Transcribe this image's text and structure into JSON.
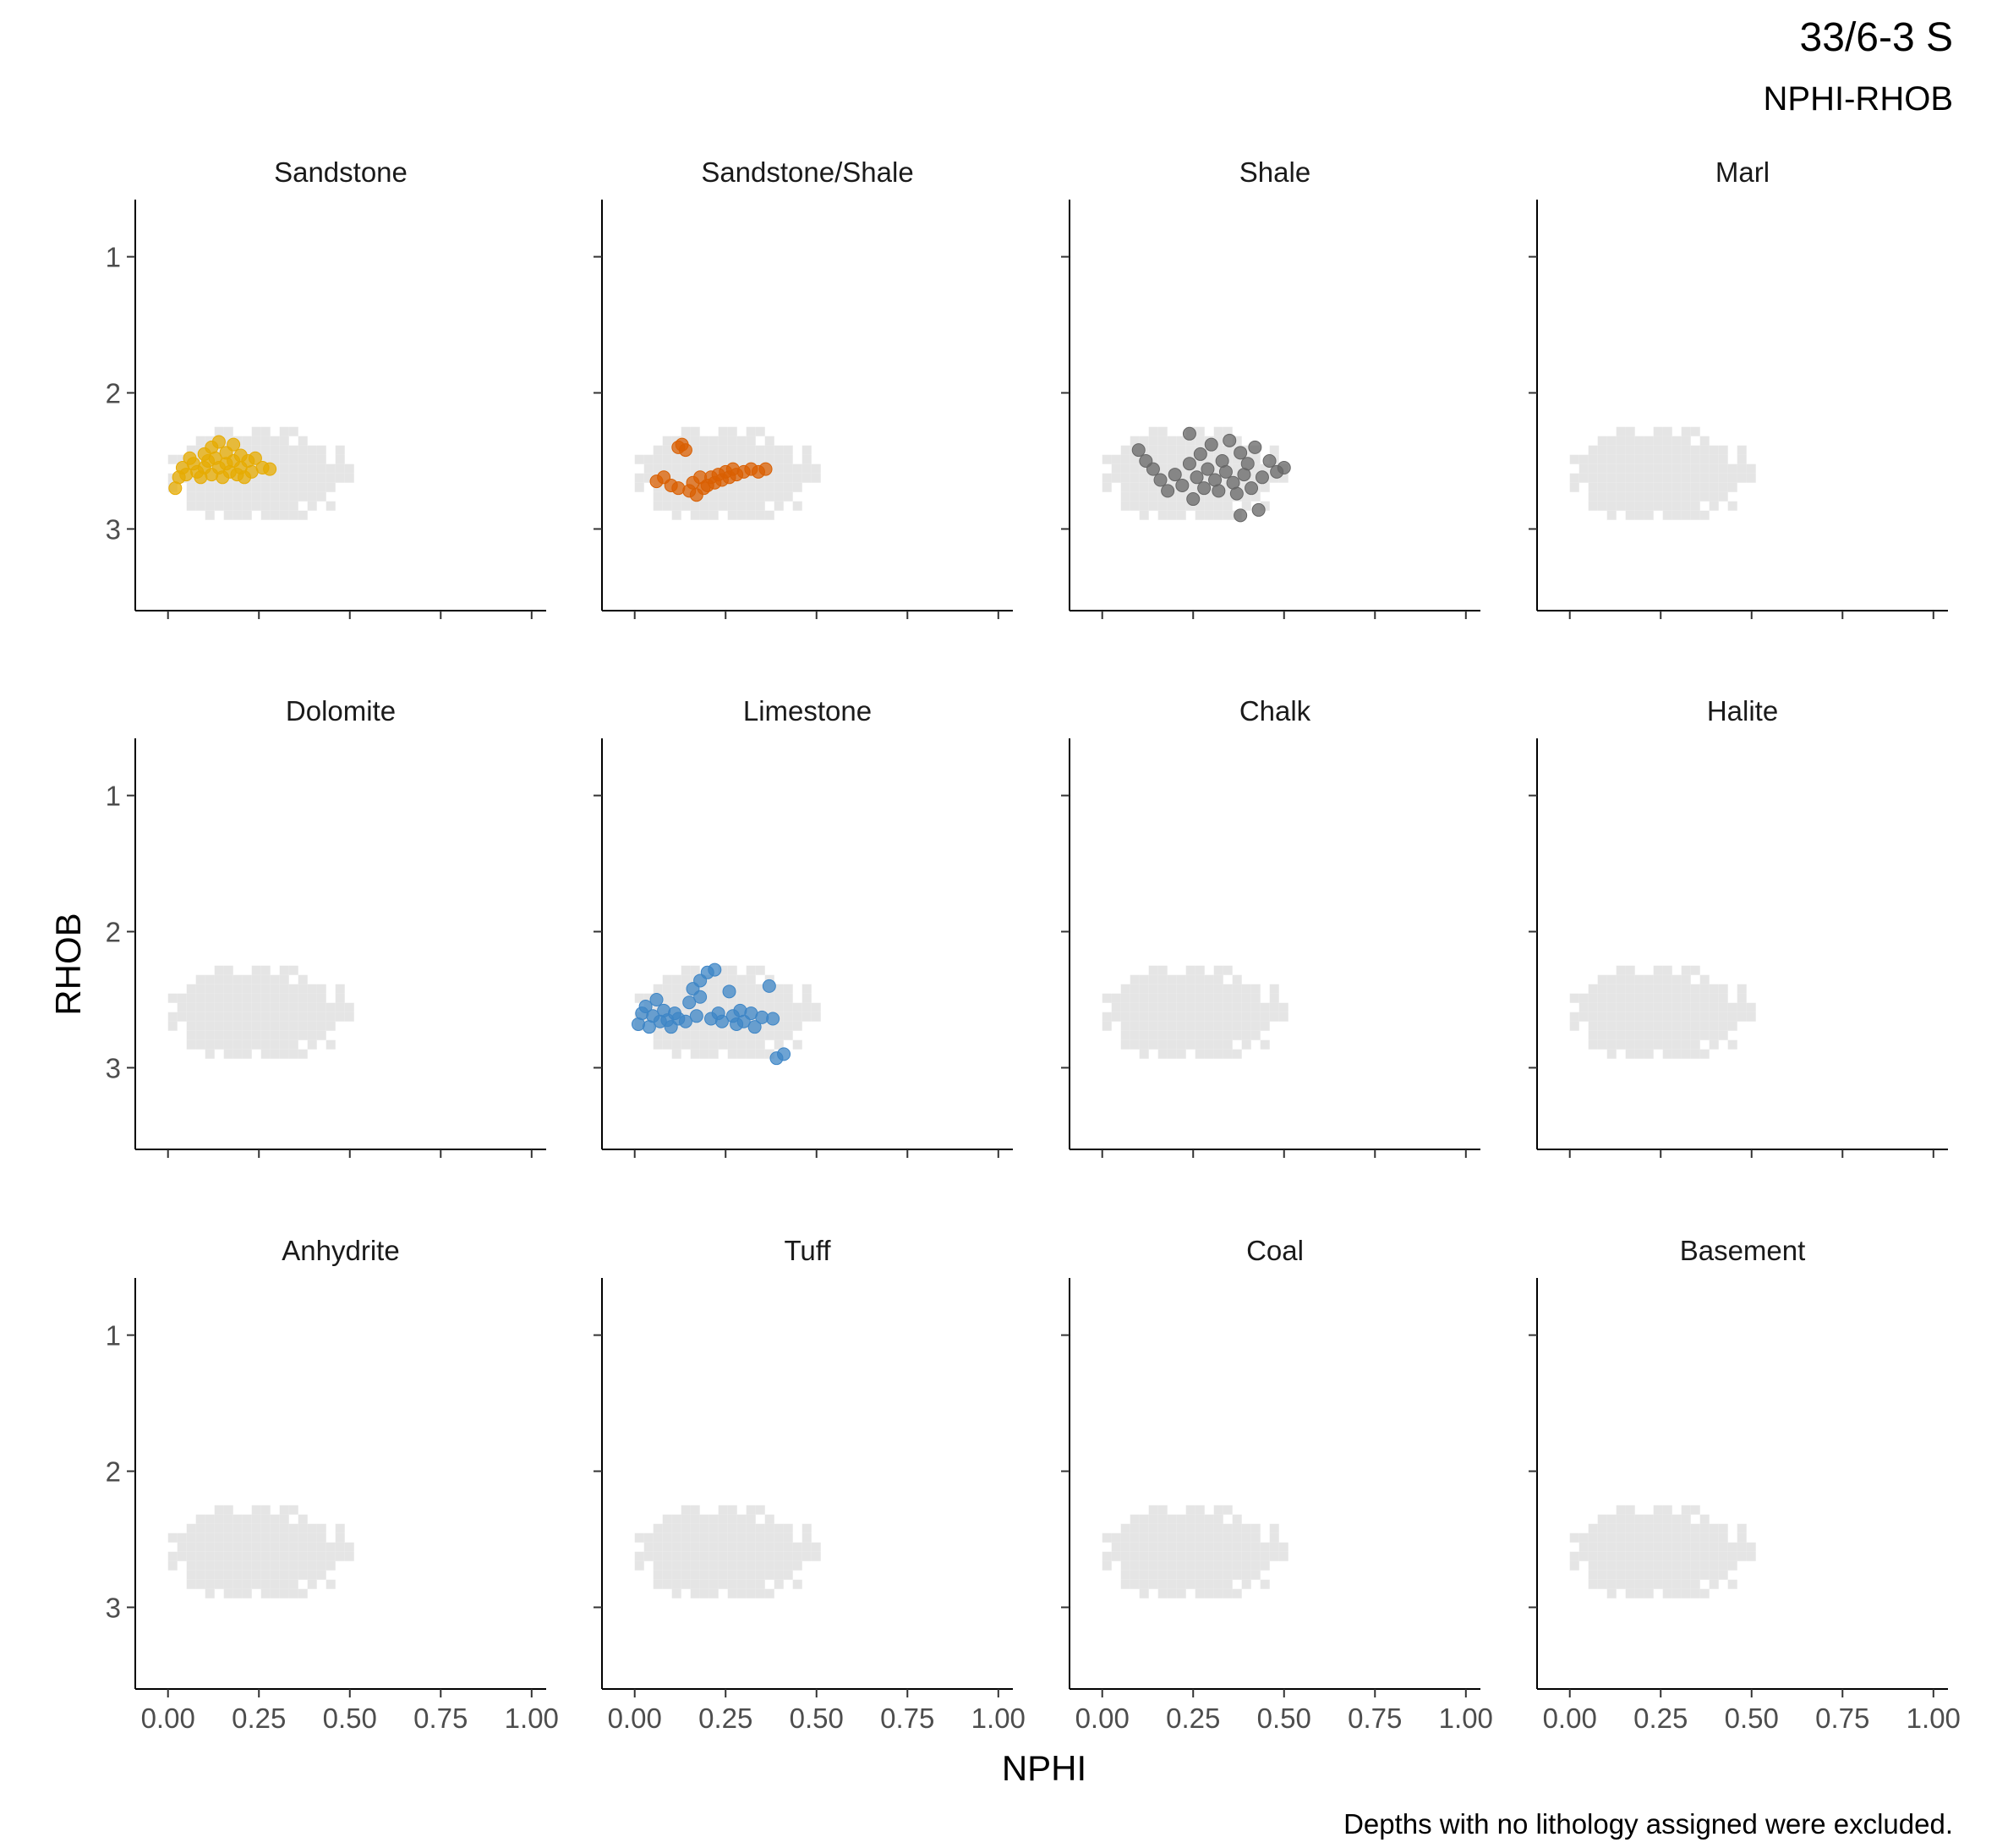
{
  "title": "33/6-3 S",
  "subtitle": "NPHI-RHOB",
  "caption": "Depths with no lithology assigned were excluded.",
  "chart_data": {
    "type": "scatter",
    "xlabel": "NPHI",
    "ylabel": "RHOB",
    "xlim": [
      -0.09,
      1.04
    ],
    "ylim": [
      0.58,
      3.6
    ],
    "y_reversed": true,
    "x_ticks": [
      "0.00",
      "0.25",
      "0.50",
      "0.75",
      "1.00"
    ],
    "y_ticks": [
      "1",
      "2",
      "3"
    ],
    "grid": false,
    "background": {
      "color": "#e5e5e5",
      "description_of_region": "all-lithology point cloud shown in every panel",
      "x_range": [
        0.0,
        0.52
      ],
      "y_range": [
        2.25,
        2.9
      ]
    },
    "panels": [
      {
        "name": "Sandstone",
        "color": "#e6ab02",
        "points": [
          [
            0.02,
            2.7
          ],
          [
            0.03,
            2.62
          ],
          [
            0.04,
            2.55
          ],
          [
            0.05,
            2.6
          ],
          [
            0.06,
            2.48
          ],
          [
            0.07,
            2.52
          ],
          [
            0.08,
            2.58
          ],
          [
            0.09,
            2.62
          ],
          [
            0.1,
            2.45
          ],
          [
            0.1,
            2.55
          ],
          [
            0.11,
            2.5
          ],
          [
            0.12,
            2.6
          ],
          [
            0.12,
            2.4
          ],
          [
            0.13,
            2.48
          ],
          [
            0.14,
            2.36
          ],
          [
            0.14,
            2.55
          ],
          [
            0.15,
            2.62
          ],
          [
            0.16,
            2.44
          ],
          [
            0.16,
            2.52
          ],
          [
            0.17,
            2.58
          ],
          [
            0.18,
            2.38
          ],
          [
            0.18,
            2.5
          ],
          [
            0.19,
            2.6
          ],
          [
            0.2,
            2.46
          ],
          [
            0.2,
            2.55
          ],
          [
            0.21,
            2.62
          ],
          [
            0.22,
            2.5
          ],
          [
            0.23,
            2.58
          ],
          [
            0.24,
            2.48
          ],
          [
            0.26,
            2.55
          ],
          [
            0.28,
            2.56
          ]
        ]
      },
      {
        "name": "Sandstone/Shale",
        "color": "#d95f02",
        "points": [
          [
            0.06,
            2.65
          ],
          [
            0.08,
            2.62
          ],
          [
            0.1,
            2.68
          ],
          [
            0.12,
            2.7
          ],
          [
            0.12,
            2.4
          ],
          [
            0.13,
            2.38
          ],
          [
            0.14,
            2.42
          ],
          [
            0.15,
            2.72
          ],
          [
            0.16,
            2.66
          ],
          [
            0.17,
            2.75
          ],
          [
            0.18,
            2.62
          ],
          [
            0.19,
            2.7
          ],
          [
            0.2,
            2.68
          ],
          [
            0.21,
            2.62
          ],
          [
            0.22,
            2.66
          ],
          [
            0.23,
            2.6
          ],
          [
            0.24,
            2.64
          ],
          [
            0.25,
            2.58
          ],
          [
            0.26,
            2.62
          ],
          [
            0.27,
            2.56
          ],
          [
            0.28,
            2.6
          ],
          [
            0.3,
            2.58
          ],
          [
            0.32,
            2.56
          ],
          [
            0.34,
            2.58
          ],
          [
            0.36,
            2.56
          ]
        ]
      },
      {
        "name": "Shale",
        "color": "#666666",
        "points": [
          [
            0.1,
            2.42
          ],
          [
            0.12,
            2.5
          ],
          [
            0.14,
            2.56
          ],
          [
            0.16,
            2.64
          ],
          [
            0.18,
            2.72
          ],
          [
            0.2,
            2.6
          ],
          [
            0.22,
            2.68
          ],
          [
            0.24,
            2.3
          ],
          [
            0.24,
            2.52
          ],
          [
            0.25,
            2.78
          ],
          [
            0.26,
            2.62
          ],
          [
            0.27,
            2.45
          ],
          [
            0.28,
            2.7
          ],
          [
            0.29,
            2.56
          ],
          [
            0.3,
            2.38
          ],
          [
            0.31,
            2.64
          ],
          [
            0.32,
            2.72
          ],
          [
            0.33,
            2.5
          ],
          [
            0.34,
            2.58
          ],
          [
            0.35,
            2.35
          ],
          [
            0.36,
            2.66
          ],
          [
            0.37,
            2.74
          ],
          [
            0.38,
            2.44
          ],
          [
            0.38,
            2.9
          ],
          [
            0.39,
            2.6
          ],
          [
            0.4,
            2.52
          ],
          [
            0.41,
            2.7
          ],
          [
            0.42,
            2.4
          ],
          [
            0.43,
            2.86
          ],
          [
            0.44,
            2.62
          ],
          [
            0.46,
            2.5
          ],
          [
            0.48,
            2.58
          ],
          [
            0.5,
            2.55
          ]
        ]
      },
      {
        "name": "Marl",
        "color": "#999999",
        "points": []
      },
      {
        "name": "Dolomite",
        "color": "#999999",
        "points": []
      },
      {
        "name": "Limestone",
        "color": "#3d85c6",
        "points": [
          [
            0.01,
            2.68
          ],
          [
            0.02,
            2.6
          ],
          [
            0.03,
            2.55
          ],
          [
            0.04,
            2.7
          ],
          [
            0.05,
            2.62
          ],
          [
            0.06,
            2.5
          ],
          [
            0.07,
            2.66
          ],
          [
            0.08,
            2.58
          ],
          [
            0.09,
            2.65
          ],
          [
            0.1,
            2.7
          ],
          [
            0.11,
            2.6
          ],
          [
            0.12,
            2.64
          ],
          [
            0.14,
            2.66
          ],
          [
            0.15,
            2.52
          ],
          [
            0.16,
            2.42
          ],
          [
            0.17,
            2.62
          ],
          [
            0.18,
            2.48
          ],
          [
            0.18,
            2.36
          ],
          [
            0.2,
            2.3
          ],
          [
            0.21,
            2.64
          ],
          [
            0.22,
            2.28
          ],
          [
            0.23,
            2.6
          ],
          [
            0.24,
            2.66
          ],
          [
            0.26,
            2.44
          ],
          [
            0.27,
            2.62
          ],
          [
            0.28,
            2.68
          ],
          [
            0.29,
            2.58
          ],
          [
            0.3,
            2.66
          ],
          [
            0.32,
            2.6
          ],
          [
            0.33,
            2.7
          ],
          [
            0.35,
            2.63
          ],
          [
            0.37,
            2.4
          ],
          [
            0.38,
            2.64
          ],
          [
            0.39,
            2.93
          ],
          [
            0.41,
            2.9
          ]
        ]
      },
      {
        "name": "Chalk",
        "color": "#999999",
        "points": []
      },
      {
        "name": "Halite",
        "color": "#999999",
        "points": []
      },
      {
        "name": "Anhydrite",
        "color": "#999999",
        "points": []
      },
      {
        "name": "Tuff",
        "color": "#999999",
        "points": []
      },
      {
        "name": "Coal",
        "color": "#999999",
        "points": []
      },
      {
        "name": "Basement",
        "color": "#999999",
        "points": []
      }
    ]
  }
}
